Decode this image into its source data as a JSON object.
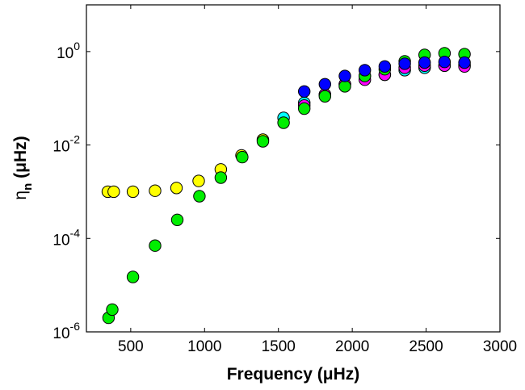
{
  "chart_data": {
    "type": "scatter",
    "title": "",
    "xlabel": "Frequency (μHz)",
    "ylabel": "η",
    "ylabel_sub": "n",
    "ylabel_unit": "(μHz)",
    "xlim": [
      200,
      3000
    ],
    "ylim": [
      1e-06,
      10
    ],
    "yscale": "log",
    "grid": false,
    "legend": "none",
    "xticks": [
      500,
      1000,
      1500,
      2000,
      2500,
      3000
    ],
    "xtick_labels": [
      "500",
      "1000",
      "1500",
      "2000",
      "2500",
      "3000"
    ],
    "yticks": [
      {
        "value": 1e-06,
        "base": "10",
        "exp": "-6"
      },
      {
        "value": 0.0001,
        "base": "10",
        "exp": "-4"
      },
      {
        "value": 0.01,
        "base": "10",
        "exp": "-2"
      },
      {
        "value": 1,
        "base": "10",
        "exp": "0"
      }
    ],
    "series": [
      {
        "color": "#ffff00",
        "points": [
          [
            345,
            0.001
          ],
          [
            385,
            0.001
          ],
          [
            515,
            0.001
          ],
          [
            665,
            0.00105
          ],
          [
            810,
            0.0012
          ],
          [
            960,
            0.0017
          ],
          [
            1110,
            0.003
          ],
          [
            1250,
            0.006
          ],
          [
            1395,
            0.013
          ]
        ]
      },
      {
        "color": "#00ffff",
        "points": [
          [
            1535,
            0.038
          ],
          [
            1675,
            0.08
          ],
          [
            1815,
            0.12
          ],
          [
            1950,
            0.2
          ],
          [
            2085,
            0.3
          ],
          [
            2220,
            0.32
          ],
          [
            2355,
            0.4
          ],
          [
            2490,
            0.45
          ],
          [
            2625,
            0.5
          ],
          [
            2760,
            0.52
          ]
        ]
      },
      {
        "color": "#ff00ff",
        "points": [
          [
            1675,
            0.07
          ],
          [
            1815,
            0.12
          ],
          [
            1950,
            0.2
          ],
          [
            2085,
            0.25
          ],
          [
            2220,
            0.32
          ],
          [
            2355,
            0.45
          ],
          [
            2490,
            0.5
          ],
          [
            2625,
            0.5
          ],
          [
            2760,
            0.48
          ]
        ]
      },
      {
        "color": "#00ee00",
        "points": [
          [
            350,
            2e-06
          ],
          [
            375,
            3e-06
          ],
          [
            515,
            1.5e-05
          ],
          [
            665,
            7e-05
          ],
          [
            815,
            0.00025
          ],
          [
            965,
            0.0008
          ],
          [
            1110,
            0.002
          ],
          [
            1255,
            0.0055
          ],
          [
            1395,
            0.012
          ],
          [
            1535,
            0.03
          ],
          [
            1675,
            0.06
          ],
          [
            1815,
            0.11
          ],
          [
            1950,
            0.18
          ],
          [
            2085,
            0.3
          ],
          [
            2220,
            0.42
          ],
          [
            2355,
            0.62
          ],
          [
            2490,
            0.85
          ],
          [
            2625,
            0.92
          ],
          [
            2760,
            0.88
          ]
        ]
      },
      {
        "color": "#0000ff",
        "points": [
          [
            1675,
            0.14
          ],
          [
            1815,
            0.2
          ],
          [
            1950,
            0.3
          ],
          [
            2085,
            0.4
          ],
          [
            2220,
            0.48
          ],
          [
            2355,
            0.55
          ],
          [
            2490,
            0.58
          ],
          [
            2625,
            0.6
          ],
          [
            2760,
            0.58
          ]
        ]
      }
    ]
  }
}
